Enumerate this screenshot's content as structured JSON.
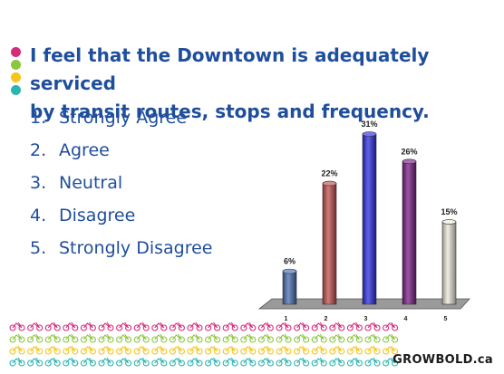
{
  "question": {
    "line1": "I feel that the Downtown is adequately serviced",
    "line2": "by transit routes, stops and frequency."
  },
  "options": [
    {
      "num": "1.",
      "label": "Strongly Agree"
    },
    {
      "num": "2.",
      "label": "Agree"
    },
    {
      "num": "3.",
      "label": "Neutral"
    },
    {
      "num": "4.",
      "label": "Disagree"
    },
    {
      "num": "5.",
      "label": "Strongly Disagree"
    }
  ],
  "dot_colors": [
    "#d62b7a",
    "#8cc63f",
    "#f5c518",
    "#2bb5b0"
  ],
  "chart_data": {
    "type": "bar",
    "categories": [
      "1",
      "2",
      "3",
      "4",
      "5"
    ],
    "values": [
      6,
      22,
      31,
      26,
      15
    ],
    "value_labels": [
      "6%",
      "22%",
      "31%",
      "26%",
      "15%"
    ],
    "ylim": [
      0,
      31
    ],
    "colors": [
      "#4a6fb3",
      "#c0504d",
      "#2d2de0",
      "#7a1f86",
      "#eceadb"
    ],
    "grid": false,
    "legend": "none"
  },
  "footer": {
    "pattern_colors": [
      "#d62b7a",
      "#8cc63f",
      "#f5c518",
      "#2bb5b0"
    ],
    "brand": "GROWBOLD.ca"
  }
}
